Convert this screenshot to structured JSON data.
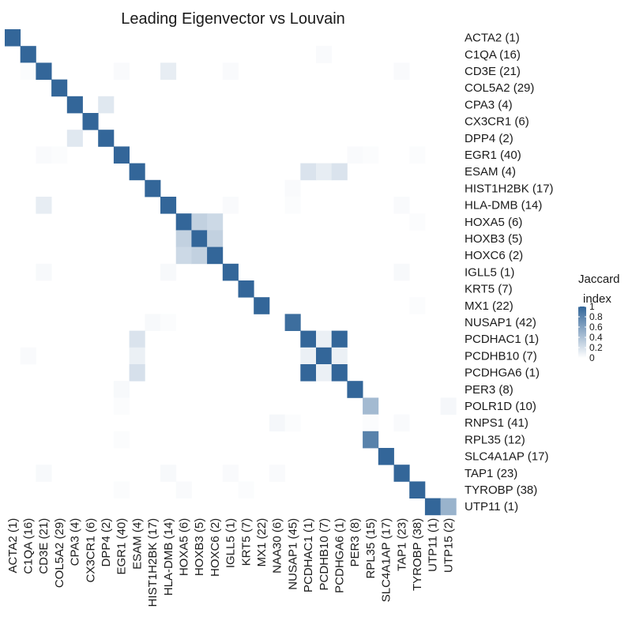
{
  "chart_data": {
    "type": "heatmap",
    "title": "Leading Eigenvector vs Louvain",
    "x_axis_side": "bottom",
    "y_axis_side": "right",
    "columns": [
      "ACTA2 (1)",
      "C1QA (16)",
      "CD3E (21)",
      "COL5A2 (29)",
      "CPA3 (4)",
      "CX3CR1 (6)",
      "DPP4 (2)",
      "EGR1 (40)",
      "ESAM (4)",
      "HIST1H2BK (17)",
      "HLA-DMB (14)",
      "HOXA5 (6)",
      "HOXB3 (5)",
      "HOXC6 (2)",
      "IGLL5 (1)",
      "KRT5 (7)",
      "MX1 (22)",
      "NAA30 (6)",
      "NUSAP1 (45)",
      "PCDHAC1 (1)",
      "PCDHB10 (7)",
      "PCDHGA6 (1)",
      "PER3 (8)",
      "RPL35 (15)",
      "SLC4A1AP (17)",
      "TAP1 (23)",
      "TYROBP (38)",
      "UTP11 (1)",
      "UTP15 (2)"
    ],
    "rows": [
      "ACTA2 (1)",
      "C1QA (16)",
      "CD3E (21)",
      "COL5A2 (29)",
      "CPA3 (4)",
      "CX3CR1 (6)",
      "DPP4 (2)",
      "EGR1 (40)",
      "ESAM (4)",
      "HIST1H2BK (17)",
      "HLA-DMB (14)",
      "HOXA5 (6)",
      "HOXB3 (5)",
      "HOXC6 (2)",
      "IGLL5 (1)",
      "KRT5 (7)",
      "MX1 (22)",
      "NUSAP1 (42)",
      "PCDHAC1 (1)",
      "PCDHB10 (7)",
      "PCDHGA6 (1)",
      "PER3 (8)",
      "POLR1D (10)",
      "RNPS1 (41)",
      "RPL35 (12)",
      "SLC4A1AP (17)",
      "TAP1 (23)",
      "TYROBP (38)",
      "UTP11 (1)"
    ],
    "cells": [
      [
        0,
        0,
        1.0
      ],
      [
        1,
        1,
        1.0
      ],
      [
        1,
        20,
        0.03
      ],
      [
        2,
        1,
        0.02
      ],
      [
        2,
        2,
        1.0
      ],
      [
        2,
        7,
        0.03
      ],
      [
        2,
        10,
        0.12
      ],
      [
        2,
        14,
        0.03
      ],
      [
        2,
        25,
        0.03
      ],
      [
        3,
        3,
        1.0
      ],
      [
        4,
        4,
        1.0
      ],
      [
        4,
        6,
        0.15
      ],
      [
        5,
        5,
        1.0
      ],
      [
        6,
        4,
        0.15
      ],
      [
        6,
        6,
        1.0
      ],
      [
        7,
        2,
        0.03
      ],
      [
        7,
        3,
        0.02
      ],
      [
        7,
        7,
        1.0
      ],
      [
        7,
        22,
        0.03
      ],
      [
        7,
        23,
        0.02
      ],
      [
        7,
        26,
        0.02
      ],
      [
        8,
        8,
        1.0
      ],
      [
        8,
        19,
        0.18
      ],
      [
        8,
        20,
        0.12
      ],
      [
        8,
        21,
        0.18
      ],
      [
        9,
        9,
        1.0
      ],
      [
        9,
        18,
        0.03
      ],
      [
        10,
        2,
        0.12
      ],
      [
        10,
        10,
        1.0
      ],
      [
        10,
        14,
        0.03
      ],
      [
        10,
        18,
        0.02
      ],
      [
        10,
        25,
        0.03
      ],
      [
        11,
        11,
        1.0
      ],
      [
        11,
        12,
        0.3
      ],
      [
        11,
        13,
        0.25
      ],
      [
        11,
        26,
        0.02
      ],
      [
        12,
        11,
        0.3
      ],
      [
        12,
        12,
        1.0
      ],
      [
        12,
        13,
        0.3
      ],
      [
        13,
        11,
        0.25
      ],
      [
        13,
        12,
        0.3
      ],
      [
        13,
        13,
        1.0
      ],
      [
        14,
        2,
        0.04
      ],
      [
        14,
        10,
        0.04
      ],
      [
        14,
        14,
        1.0
      ],
      [
        14,
        25,
        0.04
      ],
      [
        15,
        15,
        1.0
      ],
      [
        16,
        16,
        1.0
      ],
      [
        16,
        26,
        0.02
      ],
      [
        17,
        9,
        0.04
      ],
      [
        17,
        10,
        0.02
      ],
      [
        17,
        18,
        0.95
      ],
      [
        18,
        8,
        0.18
      ],
      [
        18,
        19,
        1.0
      ],
      [
        18,
        20,
        0.1
      ],
      [
        18,
        21,
        1.0
      ],
      [
        19,
        1,
        0.03
      ],
      [
        19,
        8,
        0.1
      ],
      [
        19,
        19,
        0.1
      ],
      [
        19,
        20,
        1.0
      ],
      [
        19,
        21,
        0.1
      ],
      [
        20,
        8,
        0.2
      ],
      [
        20,
        19,
        1.0
      ],
      [
        20,
        20,
        0.1
      ],
      [
        20,
        21,
        1.0
      ],
      [
        21,
        7,
        0.04
      ],
      [
        21,
        22,
        1.0
      ],
      [
        22,
        7,
        0.02
      ],
      [
        22,
        23,
        0.45
      ],
      [
        22,
        28,
        0.05
      ],
      [
        23,
        17,
        0.05
      ],
      [
        23,
        18,
        0.02
      ],
      [
        23,
        23,
        0.02
      ],
      [
        23,
        25,
        0.03
      ],
      [
        24,
        7,
        0.02
      ],
      [
        24,
        23,
        0.82
      ],
      [
        25,
        24,
        1.0
      ],
      [
        26,
        2,
        0.04
      ],
      [
        26,
        10,
        0.04
      ],
      [
        26,
        14,
        0.03
      ],
      [
        26,
        17,
        0.03
      ],
      [
        26,
        25,
        1.0
      ],
      [
        27,
        7,
        0.02
      ],
      [
        27,
        11,
        0.03
      ],
      [
        27,
        15,
        0.02
      ],
      [
        27,
        26,
        1.0
      ],
      [
        28,
        27,
        1.0
      ],
      [
        28,
        28,
        0.5
      ]
    ],
    "legend": {
      "title": "Jaccard\nindex",
      "ticks": [
        1,
        0.8,
        0.6,
        0.4,
        0.2,
        0
      ],
      "tick_labels": [
        "1",
        "0.8",
        "0.6",
        "0.4",
        "0.2",
        "0"
      ],
      "low_color": "#ffffff",
      "high_color": "#336699",
      "placement": "right"
    }
  }
}
